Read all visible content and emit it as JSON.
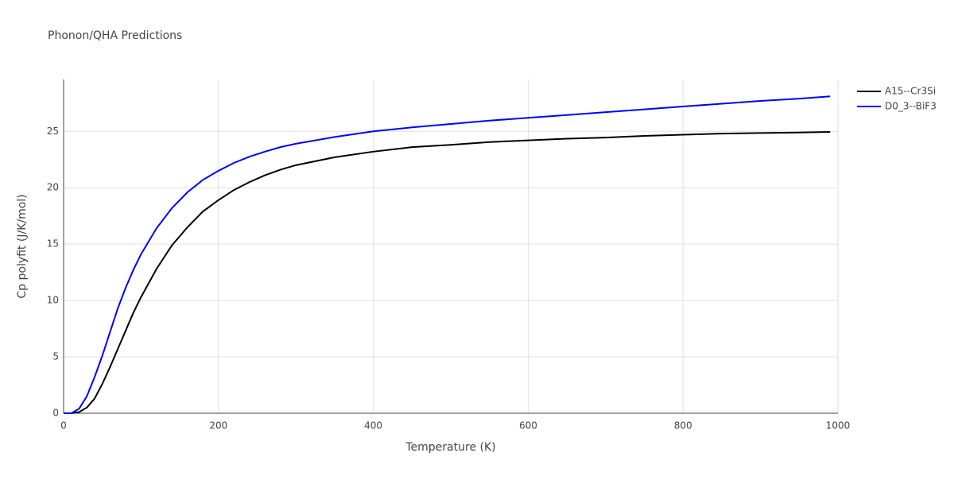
{
  "chart_data": {
    "type": "line",
    "title": "Phonon/QHA Predictions",
    "x_label": "Temperature (K)",
    "y_label": "Cp polyfit (J/K/mol)",
    "x": [
      0,
      10,
      20,
      30,
      40,
      50,
      60,
      70,
      80,
      90,
      100,
      120,
      140,
      160,
      180,
      200,
      220,
      240,
      260,
      280,
      300,
      350,
      400,
      450,
      500,
      550,
      600,
      650,
      700,
      750,
      800,
      850,
      900,
      950,
      990
    ],
    "series": [
      {
        "name": "A15--Cr3Si",
        "color": "#000000",
        "values": [
          0,
          0,
          0.1,
          0.5,
          1.3,
          2.6,
          4.1,
          5.7,
          7.3,
          8.9,
          10.3,
          12.8,
          14.9,
          16.5,
          17.9,
          18.9,
          19.8,
          20.5,
          21.1,
          21.6,
          22.0,
          22.7,
          23.2,
          23.6,
          23.8,
          24.05,
          24.2,
          24.35,
          24.45,
          24.6,
          24.7,
          24.8,
          24.85,
          24.9,
          24.95
        ]
      },
      {
        "name": "D0_3--BiF3",
        "color": "#0000ff",
        "values": [
          0,
          0,
          0.4,
          1.5,
          3.2,
          5.1,
          7.2,
          9.3,
          11.1,
          12.7,
          14.1,
          16.4,
          18.2,
          19.6,
          20.7,
          21.5,
          22.2,
          22.75,
          23.2,
          23.6,
          23.9,
          24.5,
          25.0,
          25.35,
          25.65,
          25.95,
          26.2,
          26.45,
          26.7,
          26.95,
          27.2,
          27.45,
          27.7,
          27.9,
          28.1
        ]
      }
    ],
    "xlim": [
      0,
      1000
    ],
    "xticks": [
      0,
      200,
      400,
      600,
      800,
      1000
    ],
    "ylim": [
      0,
      29.6
    ],
    "yticks": [
      0,
      5,
      10,
      15,
      20,
      25
    ],
    "grid": true,
    "legend": "top-right"
  }
}
